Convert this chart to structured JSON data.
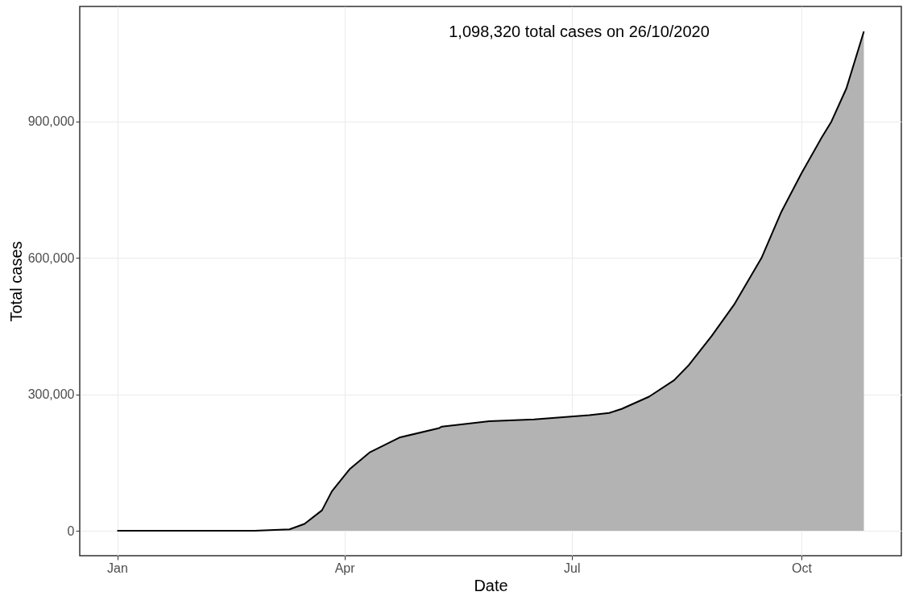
{
  "chart_data": {
    "type": "area",
    "xlabel": "Date",
    "ylabel": "Total cases",
    "annotations": [
      "1,098,320 total cases on 26/10/2020"
    ],
    "x": [
      "2020-01-01",
      "2020-02-25",
      "2020-03-10",
      "2020-03-16",
      "2020-03-23",
      "2020-03-27",
      "2020-04-03",
      "2020-04-11",
      "2020-04-23",
      "2020-05-09",
      "2020-05-10",
      "2020-05-29",
      "2020-06-16",
      "2020-07-08",
      "2020-07-16",
      "2020-07-21",
      "2020-08-01",
      "2020-08-11",
      "2020-08-17",
      "2020-08-26",
      "2020-09-04",
      "2020-09-15",
      "2020-09-23",
      "2020-10-01",
      "2020-10-09",
      "2020-10-13",
      "2020-10-19",
      "2020-10-26"
    ],
    "series": [
      {
        "color": "#b3b3b3",
        "values": [
          0,
          0,
          3000,
          15000,
          45000,
          87000,
          135000,
          172000,
          205000,
          226000,
          229000,
          241000,
          245000,
          254000,
          259000,
          268000,
          295000,
          331000,
          365000,
          428000,
          497000,
          600000,
          702000,
          786000,
          864000,
          900000,
          973000,
          1098320
        ]
      }
    ],
    "xlim": [
      "2019-12-17",
      "2020-11-10"
    ],
    "xticks": [
      {
        "value": "2020-01-01",
        "label": "Jan"
      },
      {
        "value": "2020-04-01",
        "label": "Apr"
      },
      {
        "value": "2020-07-01",
        "label": "Jul"
      },
      {
        "value": "2020-10-01",
        "label": "Oct"
      }
    ],
    "ylim": [
      -54916,
      1153236
    ],
    "yticks": [
      0,
      {
        "value": 300000,
        "label": "300,000"
      },
      {
        "value": 600000,
        "label": "600,000"
      },
      {
        "value": 900000,
        "label": "900,000"
      }
    ],
    "grid": true
  }
}
